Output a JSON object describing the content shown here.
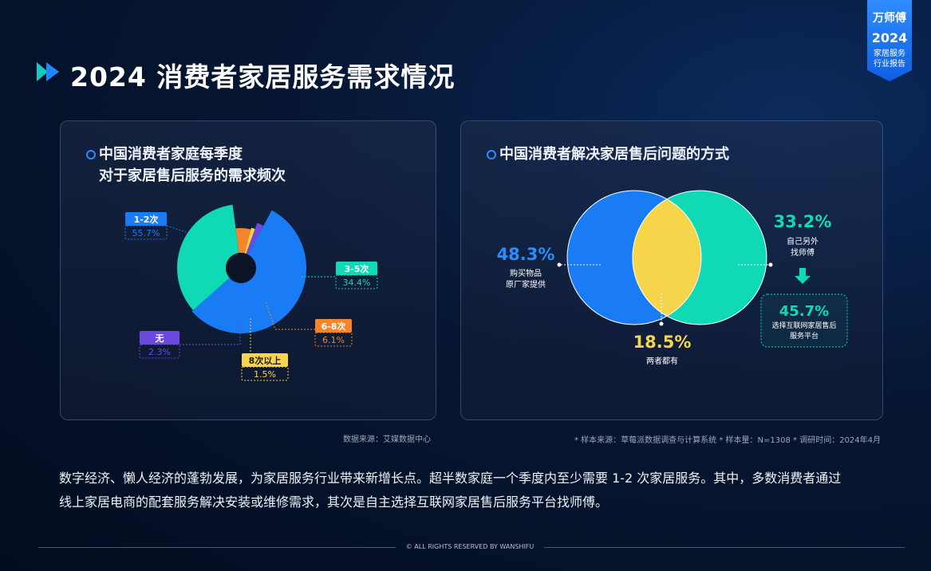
{
  "header": {
    "title": "2024 消费者家居服务需求情况"
  },
  "badge": {
    "brand": "万师傅",
    "year": "2024",
    "line1": "家居服务",
    "line2": "行业报告"
  },
  "left_panel": {
    "title_line1": "中国消费者家庭每季度",
    "title_line2": "对于家居售后服务的需求频次",
    "source": "数据来源：艾媒数据中心"
  },
  "right_panel": {
    "title": "中国消费者解决家居售后问题的方式",
    "source": "* 样本来源：草莓派数据调查与计算系统  * 样本量：N=1308  * 调研时间：2024年4月"
  },
  "summary": {
    "line1": "数字经济、懒人经济的蓬勃发展，为家居服务行业带来新增长点。超半数家庭一个季度内至少需要 1-2 次家居服务。其中，多数消费者通过",
    "line2": "线上家居电商的配套服务解决安装或维修需求，其次是自主选择互联网家居售后服务平台找师傅。"
  },
  "footer": {
    "copyright": "© ALL RIGHTS RESERVED BY WANSHIFU"
  },
  "colors": {
    "blue": "#1a7cf5",
    "teal": "#10d9b5",
    "orange": "#f5842a",
    "yellow": "#f7d54a",
    "purple": "#6c4ae0"
  },
  "chart_data": [
    {
      "type": "pie",
      "categories": [
        "1-2次",
        "3-5次",
        "6-8次",
        "8次以上",
        "无"
      ],
      "values": [
        55.7,
        34.4,
        6.1,
        1.5,
        2.3
      ],
      "value_labels": [
        "55.7%",
        "34.4%",
        "6.1%",
        "1.5%",
        "2.3%"
      ],
      "colors": [
        "#1a7cf5",
        "#10d9b5",
        "#f5842a",
        "#f7d54a",
        "#6c4ae0"
      ]
    },
    {
      "type": "venn",
      "sets": [
        {
          "value": "48.3%",
          "label_line1": "购买物品",
          "label_line2": "原厂家提供",
          "color": "#1a7cf5"
        },
        {
          "value": "33.2%",
          "label_line1": "自己另外",
          "label_line2": "找师傅",
          "color": "#10d9b5"
        }
      ],
      "intersection": {
        "value": "18.5%",
        "label": "两者都有",
        "color": "#f7d54a"
      },
      "callout": {
        "value": "45.7%",
        "label_line1": "选择互联网家居售后",
        "label_line2": "服务平台"
      }
    }
  ]
}
